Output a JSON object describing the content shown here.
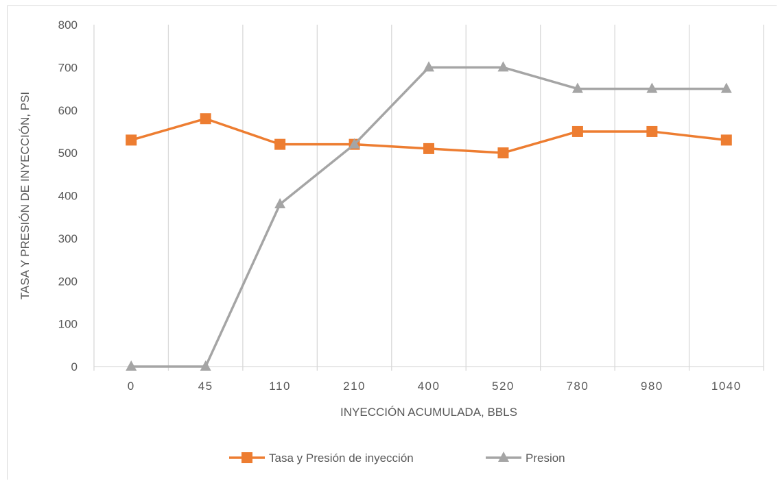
{
  "chart_data": {
    "type": "line",
    "title": "",
    "xlabel": "INYECCIÓN ACUMULADA, BBLS",
    "ylabel": "TASA Y PRESIÓN DE INYECCIÓN, PSI",
    "categories": [
      "0",
      "45",
      "110",
      "210",
      "400",
      "520",
      "780",
      "980",
      "1040"
    ],
    "ylim": [
      0,
      800
    ],
    "yticks": [
      "0",
      "100",
      "200",
      "300",
      "400",
      "500",
      "600",
      "700",
      "800"
    ],
    "grid": "vertical",
    "legend_position": "bottom",
    "series": [
      {
        "name": "Tasa y Presión de inyección",
        "color": "#ed7d31",
        "marker": "square",
        "values": [
          530,
          580,
          520,
          520,
          510,
          500,
          550,
          550,
          530
        ]
      },
      {
        "name": "Presion",
        "color": "#a5a5a5",
        "marker": "triangle",
        "values": [
          0,
          0,
          380,
          520,
          700,
          700,
          650,
          650,
          650
        ]
      }
    ]
  }
}
